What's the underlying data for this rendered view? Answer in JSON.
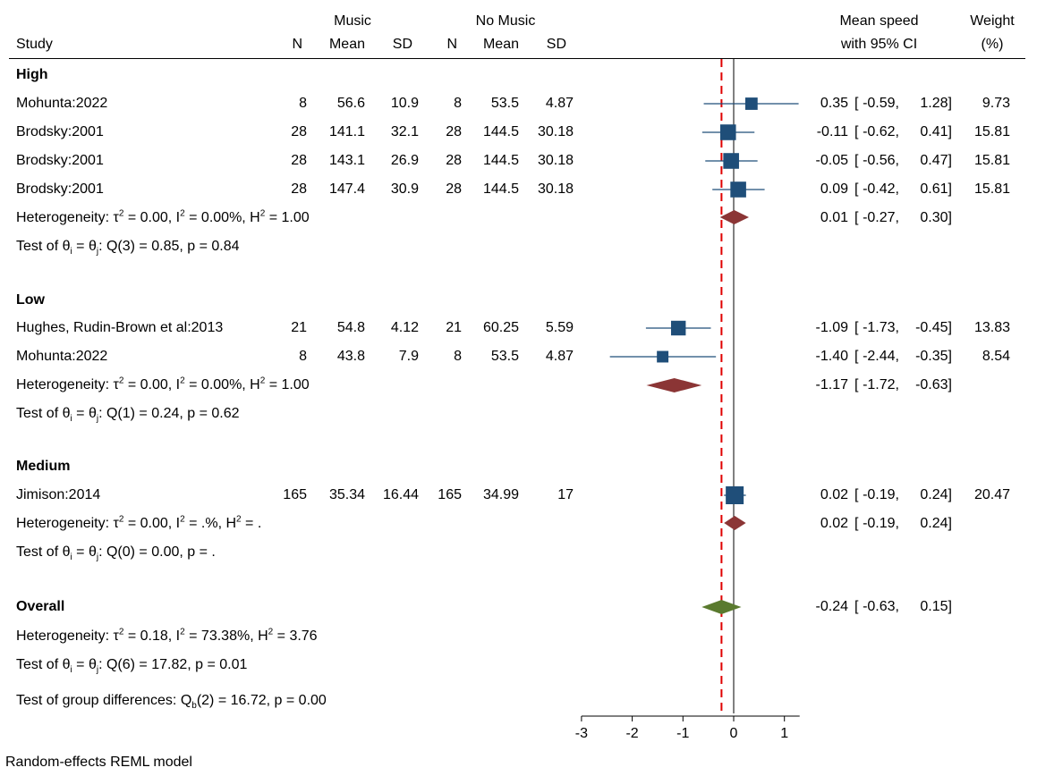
{
  "header": {
    "music_group": "Music",
    "nomusic_group": "No Music",
    "study": "Study",
    "n1": "N",
    "mean1": "Mean",
    "sd1": "SD",
    "n2": "N",
    "mean2": "Mean",
    "sd2": "SD",
    "effect_line1": "Mean speed",
    "effect_line2": "with 95% CI",
    "weight_line1": "Weight",
    "weight_line2": "(%)"
  },
  "groups": [
    {
      "name": "High",
      "studies": [
        {
          "study": "Mohunta:2022",
          "n1": "8",
          "mean1": "56.6",
          "sd1": "10.9",
          "n2": "8",
          "mean2": "53.5",
          "sd2": "4.87",
          "est": "0.35",
          "lo": "-0.59,",
          "hi": "1.28]",
          "weight": "9.73"
        },
        {
          "study": "Brodsky:2001",
          "n1": "28",
          "mean1": "141.1",
          "sd1": "32.1",
          "n2": "28",
          "mean2": "144.5",
          "sd2": "30.18",
          "est": "-0.11",
          "lo": "-0.62,",
          "hi": "0.41]",
          "weight": "15.81"
        },
        {
          "study": "Brodsky:2001",
          "n1": "28",
          "mean1": "143.1",
          "sd1": "26.9",
          "n2": "28",
          "mean2": "144.5",
          "sd2": "30.18",
          "est": "-0.05",
          "lo": "-0.56,",
          "hi": "0.47]",
          "weight": "15.81"
        },
        {
          "study": "Brodsky:2001",
          "n1": "28",
          "mean1": "147.4",
          "sd1": "30.9",
          "n2": "28",
          "mean2": "144.5",
          "sd2": "30.18",
          "est": "0.09",
          "lo": "-0.42,",
          "hi": "0.61]",
          "weight": "15.81"
        }
      ],
      "heterogeneity": {
        "prefix": "Heterogeneity: ",
        "tau_sym": "τ",
        "tau_exp": "2",
        "tau_val": " = 0.00, I",
        "i_exp": "2",
        "i_val": " = 0.00%, H",
        "h_exp": "2",
        "h_val": " = 1.00"
      },
      "test": {
        "prefix": "Test of ",
        "theta": "θ",
        "sub_i": "i",
        "eq": " = ",
        "sub_j": "j",
        "rest": ": Q(3) = 0.85, p = 0.84"
      },
      "summary": {
        "est": "0.01",
        "lo": "-0.27,",
        "hi": "0.30]"
      }
    },
    {
      "name": "Low",
      "studies": [
        {
          "study": "Hughes, Rudin-Brown et al:2013",
          "n1": "21",
          "mean1": "54.8",
          "sd1": "4.12",
          "n2": "21",
          "mean2": "60.25",
          "sd2": "5.59",
          "est": "-1.09",
          "lo": "-1.73,",
          "hi": "-0.45]",
          "weight": "13.83"
        },
        {
          "study": "Mohunta:2022",
          "n1": "8",
          "mean1": "43.8",
          "sd1": "7.9",
          "n2": "8",
          "mean2": "53.5",
          "sd2": "4.87",
          "est": "-1.40",
          "lo": "-2.44,",
          "hi": "-0.35]",
          "weight": "8.54"
        }
      ],
      "heterogeneity": {
        "prefix": "Heterogeneity: ",
        "tau_sym": "τ",
        "tau_exp": "2",
        "tau_val": " = 0.00, I",
        "i_exp": "2",
        "i_val": " = 0.00%, H",
        "h_exp": "2",
        "h_val": " = 1.00"
      },
      "test": {
        "prefix": "Test of ",
        "theta": "θ",
        "sub_i": "i",
        "eq": " = ",
        "sub_j": "j",
        "rest": ": Q(1) = 0.24, p = 0.62"
      },
      "summary": {
        "est": "-1.17",
        "lo": "-1.72,",
        "hi": "-0.63]"
      }
    },
    {
      "name": "Medium",
      "studies": [
        {
          "study": "Jimison:2014",
          "n1": "165",
          "mean1": "35.34",
          "sd1": "16.44",
          "n2": "165",
          "mean2": "34.99",
          "sd2": "17",
          "est": "0.02",
          "lo": "-0.19,",
          "hi": "0.24]",
          "weight": "20.47"
        }
      ],
      "heterogeneity": {
        "prefix": "Heterogeneity: ",
        "tau_sym": "τ",
        "tau_exp": "2",
        "tau_val": " = 0.00, I",
        "i_exp": "2",
        "i_val": " = .%, H",
        "h_exp": "2",
        "h_val": " = ."
      },
      "test": {
        "prefix": "Test of ",
        "theta": "θ",
        "sub_i": "i",
        "eq": " = ",
        "sub_j": "j",
        "rest": ": Q(0) = 0.00, p = ."
      },
      "summary": {
        "est": "0.02",
        "lo": "-0.19,",
        "hi": "0.24]"
      }
    }
  ],
  "overall": {
    "label": "Overall",
    "summary": {
      "est": "-0.24",
      "lo": "-0.63,",
      "hi": "0.15]"
    },
    "heterogeneity": {
      "prefix": "Heterogeneity: ",
      "tau_sym": "τ",
      "tau_exp": "2",
      "tau_val": " = 0.18, I",
      "i_exp": "2",
      "i_val": " = 73.38%, H",
      "h_exp": "2",
      "h_val": " = 3.76"
    },
    "test": {
      "prefix": "Test of ",
      "theta": "θ",
      "sub_i": "i",
      "eq": " = ",
      "sub_j": "j",
      "rest": ": Q(6) = 17.82, p = 0.01"
    },
    "group_diff": {
      "prefix": "Test of group differences: Q",
      "sub": "b",
      "rest": "(2) = 16.72, p = 0.00"
    }
  },
  "footnote": "Random-effects REML model",
  "colors": {
    "study_marker": "#1f4e79",
    "subgroup_diamond": "#8b3535",
    "overall_diamond": "#5a7a2e",
    "overall_line": "#e00000",
    "null_line": "#000000"
  },
  "chart_data": {
    "type": "forest",
    "title": "",
    "xlabel": "",
    "ylabel": "",
    "xlim": [
      -3,
      1.3
    ],
    "xticks": [
      -3,
      -2,
      -1,
      0,
      1
    ],
    "xtick_labels": [
      "-3",
      "-2",
      "-1",
      "0",
      "1"
    ],
    "null_value": 0,
    "overall_estimate": -0.24,
    "studies": [
      {
        "group": "High",
        "study": "Mohunta:2022",
        "est": 0.35,
        "lo": -0.59,
        "hi": 1.28,
        "weight": 9.73
      },
      {
        "group": "High",
        "study": "Brodsky:2001",
        "est": -0.11,
        "lo": -0.62,
        "hi": 0.41,
        "weight": 15.81
      },
      {
        "group": "High",
        "study": "Brodsky:2001",
        "est": -0.05,
        "lo": -0.56,
        "hi": 0.47,
        "weight": 15.81
      },
      {
        "group": "High",
        "study": "Brodsky:2001",
        "est": 0.09,
        "lo": -0.42,
        "hi": 0.61,
        "weight": 15.81
      },
      {
        "group": "Low",
        "study": "Hughes, Rudin-Brown et al:2013",
        "est": -1.09,
        "lo": -1.73,
        "hi": -0.45,
        "weight": 13.83
      },
      {
        "group": "Low",
        "study": "Mohunta:2022",
        "est": -1.4,
        "lo": -2.44,
        "hi": -0.35,
        "weight": 8.54
      },
      {
        "group": "Medium",
        "study": "Jimison:2014",
        "est": 0.02,
        "lo": -0.19,
        "hi": 0.24,
        "weight": 20.47
      }
    ],
    "subgroups": [
      {
        "group": "High",
        "est": 0.01,
        "lo": -0.27,
        "hi": 0.3
      },
      {
        "group": "Low",
        "est": -1.17,
        "lo": -1.72,
        "hi": -0.63
      },
      {
        "group": "Medium",
        "est": 0.02,
        "lo": -0.19,
        "hi": 0.24
      }
    ],
    "overall": {
      "est": -0.24,
      "lo": -0.63,
      "hi": 0.15
    }
  }
}
